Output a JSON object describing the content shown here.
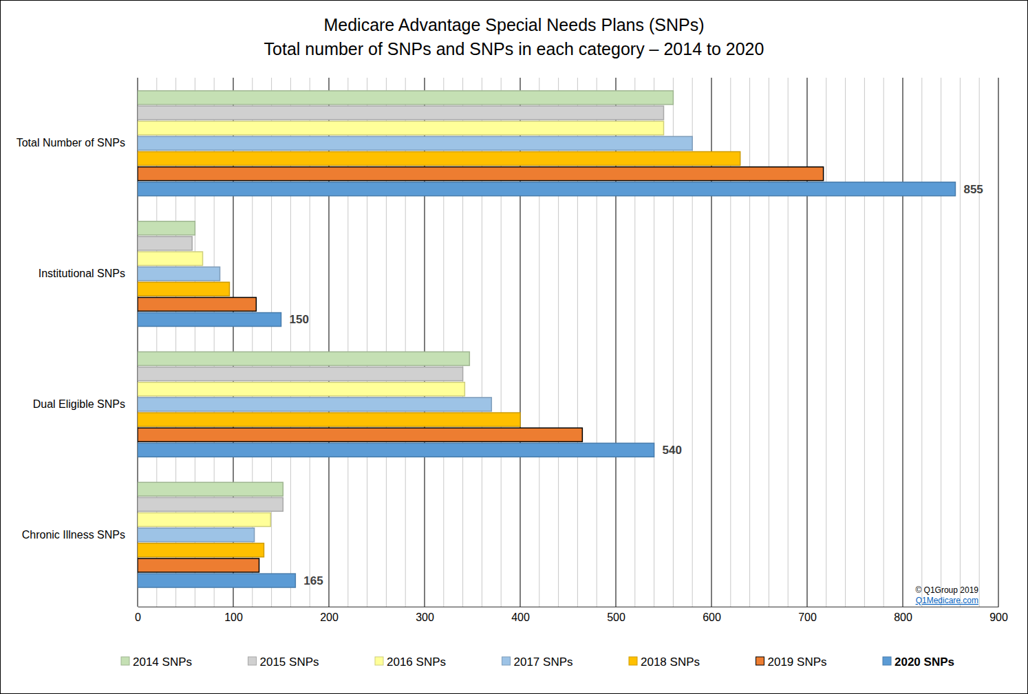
{
  "chart_data": {
    "type": "bar",
    "orientation": "horizontal",
    "title": "Medicare Advantage Special Needs Plans (SNPs)",
    "subtitle": "Total number of SNPs and SNPs in each category – 2014 to 2020",
    "categories": [
      "Total Number of SNPs",
      "Institutional SNPs",
      "Dual Eligible SNPs",
      "Chronic Illness SNPs"
    ],
    "series": [
      {
        "name": "2014 SNPs",
        "color": "#c5e0b4",
        "values": [
          560,
          60,
          347,
          152
        ]
      },
      {
        "name": "2015 SNPs",
        "color": "#d0d0d0",
        "values": [
          550,
          57,
          340,
          152
        ]
      },
      {
        "name": "2016 SNPs",
        "color": "#ffff99",
        "values": [
          550,
          68,
          342,
          139
        ]
      },
      {
        "name": "2017 SNPs",
        "color": "#9dc3e6",
        "values": [
          580,
          86,
          370,
          122
        ]
      },
      {
        "name": "2018 SNPs",
        "color": "#ffc000",
        "values": [
          630,
          96,
          400,
          132
        ]
      },
      {
        "name": "2019 SNPs",
        "color": "#ed7d31",
        "values": [
          717,
          124,
          465,
          127
        ]
      },
      {
        "name": "2020 SNPs",
        "color": "#5b9bd5",
        "values": [
          855,
          150,
          540,
          165
        ],
        "data_labels": true
      }
    ],
    "xlim": [
      0,
      900
    ],
    "xticks": [
      0,
      100,
      200,
      300,
      400,
      500,
      600,
      700,
      800,
      900
    ],
    "grid": true,
    "legend": "bottom",
    "annotations": [
      "© Q1Group 2019",
      "Q1Medicare.com"
    ]
  }
}
